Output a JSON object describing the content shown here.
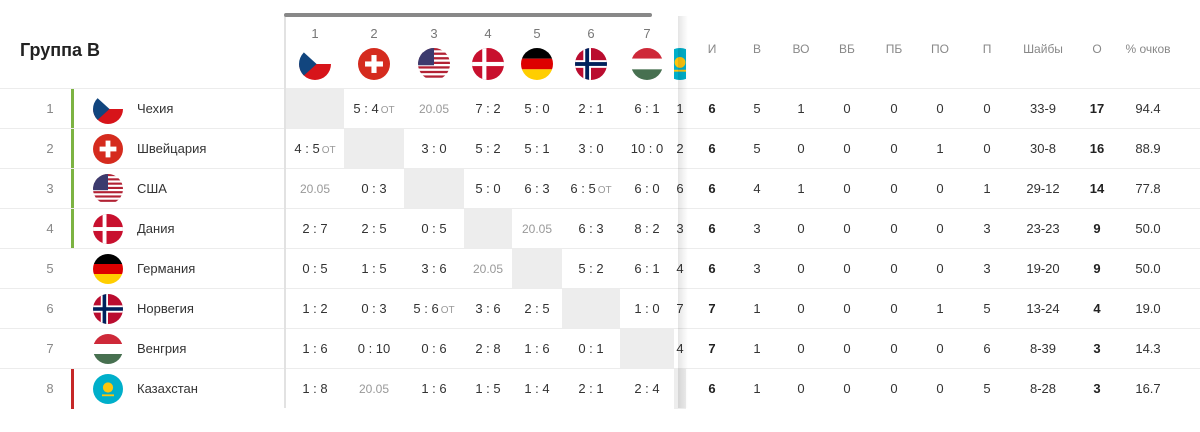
{
  "group_title": "Группа B",
  "colors": {
    "qualified": "#7cb342",
    "relegated": "#c62828",
    "self_cell": "#ededed"
  },
  "columns": {
    "opponents": [
      {
        "num": "1",
        "flag": "czech"
      },
      {
        "num": "2",
        "flag": "switzerland"
      },
      {
        "num": "3",
        "flag": "usa"
      },
      {
        "num": "4",
        "flag": "denmark"
      },
      {
        "num": "5",
        "flag": "germany"
      },
      {
        "num": "6",
        "flag": "norway"
      },
      {
        "num": "7",
        "flag": "hungary"
      },
      {
        "num": "",
        "flag": "kazakhstan"
      }
    ],
    "stats": [
      "И",
      "В",
      "ВО",
      "ВБ",
      "ПБ",
      "ПО",
      "П",
      "Шайбы",
      "О",
      "% очков"
    ]
  },
  "rows": [
    {
      "rank": "1",
      "name": "Чехия",
      "flag": "czech",
      "bar": "qualified",
      "results": [
        null,
        {
          "s": "5 : 4",
          "ot": "ОТ"
        },
        {
          "d": "20.05"
        },
        {
          "s": "7 : 2"
        },
        {
          "s": "5 : 0"
        },
        {
          "s": "2 : 1"
        },
        {
          "s": "6 : 1"
        },
        {
          "s": "1"
        }
      ],
      "stats": [
        "6",
        "5",
        "1",
        "0",
        "0",
        "0",
        "0",
        "33-9",
        "17",
        "94.4"
      ]
    },
    {
      "rank": "2",
      "name": "Швейцария",
      "flag": "switzerland",
      "bar": "qualified",
      "results": [
        {
          "s": "4 : 5",
          "ot": "ОТ"
        },
        null,
        {
          "s": "3 : 0"
        },
        {
          "s": "5 : 2"
        },
        {
          "s": "5 : 1"
        },
        {
          "s": "3 : 0"
        },
        {
          "s": "10 : 0"
        },
        {
          "s": "2"
        }
      ],
      "stats": [
        "6",
        "5",
        "0",
        "0",
        "0",
        "1",
        "0",
        "30-8",
        "16",
        "88.9"
      ]
    },
    {
      "rank": "3",
      "name": "США",
      "flag": "usa",
      "bar": "qualified",
      "results": [
        {
          "d": "20.05"
        },
        {
          "s": "0 : 3"
        },
        null,
        {
          "s": "5 : 0"
        },
        {
          "s": "6 : 3"
        },
        {
          "s": "6 : 5",
          "ot": "ОТ"
        },
        {
          "s": "6 : 0"
        },
        {
          "s": "6"
        }
      ],
      "stats": [
        "6",
        "4",
        "1",
        "0",
        "0",
        "0",
        "1",
        "29-12",
        "14",
        "77.8"
      ]
    },
    {
      "rank": "4",
      "name": "Дания",
      "flag": "denmark",
      "bar": "qualified",
      "results": [
        {
          "s": "2 : 7"
        },
        {
          "s": "2 : 5"
        },
        {
          "s": "0 : 5"
        },
        null,
        {
          "d": "20.05"
        },
        {
          "s": "6 : 3"
        },
        {
          "s": "8 : 2"
        },
        {
          "s": "3"
        }
      ],
      "stats": [
        "6",
        "3",
        "0",
        "0",
        "0",
        "0",
        "3",
        "23-23",
        "9",
        "50.0"
      ]
    },
    {
      "rank": "5",
      "name": "Германия",
      "flag": "germany",
      "bar": "",
      "results": [
        {
          "s": "0 : 5"
        },
        {
          "s": "1 : 5"
        },
        {
          "s": "3 : 6"
        },
        {
          "d": "20.05"
        },
        null,
        {
          "s": "5 : 2"
        },
        {
          "s": "6 : 1"
        },
        {
          "s": "4"
        }
      ],
      "stats": [
        "6",
        "3",
        "0",
        "0",
        "0",
        "0",
        "3",
        "19-20",
        "9",
        "50.0"
      ]
    },
    {
      "rank": "6",
      "name": "Норвегия",
      "flag": "norway",
      "bar": "",
      "results": [
        {
          "s": "1 : 2"
        },
        {
          "s": "0 : 3"
        },
        {
          "s": "5 : 6",
          "ot": "ОТ"
        },
        {
          "s": "3 : 6"
        },
        {
          "s": "2 : 5"
        },
        null,
        {
          "s": "1 : 0"
        },
        {
          "s": "7"
        }
      ],
      "stats": [
        "7",
        "1",
        "0",
        "0",
        "0",
        "1",
        "5",
        "13-24",
        "4",
        "19.0"
      ]
    },
    {
      "rank": "7",
      "name": "Венгрия",
      "flag": "hungary",
      "bar": "",
      "results": [
        {
          "s": "1 : 6"
        },
        {
          "s": "0 : 10"
        },
        {
          "s": "0 : 6"
        },
        {
          "s": "2 : 8"
        },
        {
          "s": "1 : 6"
        },
        {
          "s": "0 : 1"
        },
        null,
        {
          "s": "4"
        }
      ],
      "stats": [
        "7",
        "1",
        "0",
        "0",
        "0",
        "0",
        "6",
        "8-39",
        "3",
        "14.3"
      ]
    },
    {
      "rank": "8",
      "name": "Казахстан",
      "flag": "kazakhstan",
      "bar": "relegated",
      "results": [
        {
          "s": "1 : 8"
        },
        {
          "d": "20.05"
        },
        {
          "s": "1 : 6"
        },
        {
          "s": "1 : 5"
        },
        {
          "s": "1 : 4"
        },
        {
          "s": "2 : 1"
        },
        {
          "s": "2 : 4"
        },
        null
      ],
      "stats": [
        "6",
        "1",
        "0",
        "0",
        "0",
        "0",
        "5",
        "8-28",
        "3",
        "16.7"
      ]
    }
  ]
}
